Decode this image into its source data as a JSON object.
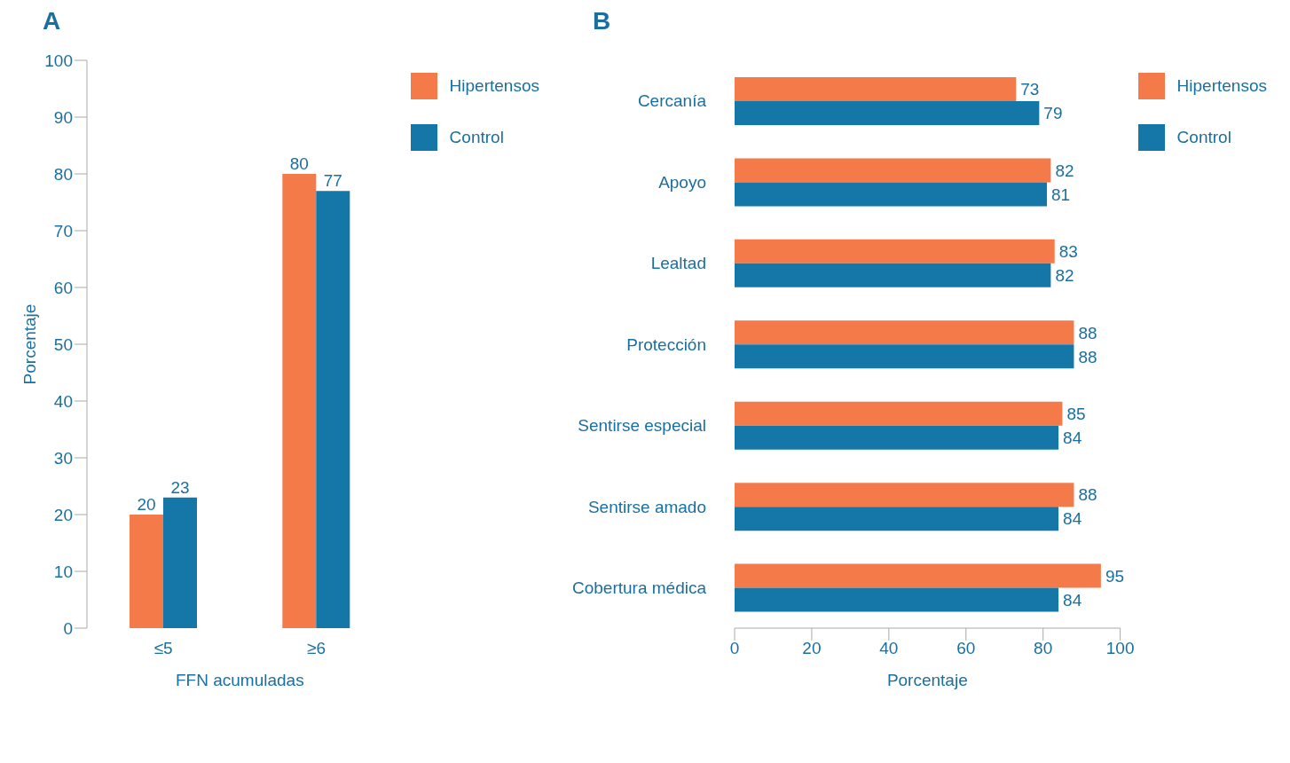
{
  "chart_data": [
    {
      "type": "bar",
      "title": "A",
      "categories": [
        "≤5",
        "≥6"
      ],
      "xlabel": "FFN acumuladas",
      "ylabel": "Porcentaje",
      "ylim": [
        0,
        100
      ],
      "yticks": [
        0,
        10,
        20,
        30,
        40,
        50,
        60,
        70,
        80,
        90,
        100
      ],
      "legend": "top right",
      "data_labels": true,
      "series": [
        {
          "name": "Hipertensos",
          "color": "#f47a4a",
          "values": [
            20,
            80
          ]
        },
        {
          "name": "Control",
          "color": "#1477a8",
          "values": [
            23,
            77
          ]
        }
      ]
    },
    {
      "type": "bar",
      "title": "B",
      "orientation": "horizontal",
      "categories": [
        "Cercanía",
        "Apoyo",
        "Lealtad",
        "Protección",
        "Sentirse especial",
        "Sentirse amado",
        "Cobertura médica"
      ],
      "xlabel": "Porcentaje",
      "xlim": [
        0,
        100
      ],
      "xticks": [
        0,
        20,
        40,
        60,
        80,
        100
      ],
      "legend": "top right",
      "data_labels": true,
      "series": [
        {
          "name": "Hipertensos",
          "color": "#f47a4a",
          "values": [
            73,
            82,
            83,
            88,
            85,
            88,
            95
          ]
        },
        {
          "name": "Control",
          "color": "#1477a8",
          "values": [
            79,
            81,
            82,
            88,
            84,
            84,
            84
          ]
        }
      ]
    }
  ]
}
